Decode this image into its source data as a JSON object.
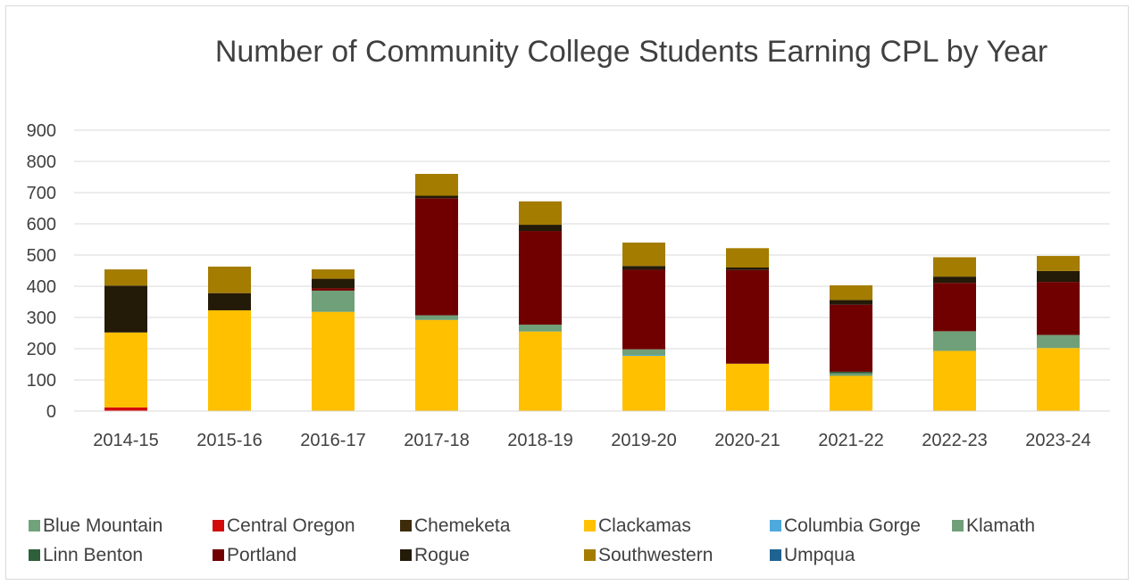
{
  "chart_data": {
    "type": "bar",
    "stacked": true,
    "title": "Number of Community College Students Earning CPL by Year",
    "xlabel": "",
    "ylabel": "",
    "ylim": [
      0,
      900
    ],
    "yticks": [
      0,
      100,
      200,
      300,
      400,
      500,
      600,
      700,
      800,
      900
    ],
    "grid": true,
    "legend_position": "bottom",
    "categories": [
      "2014-15",
      "2015-16",
      "2016-17",
      "2017-18",
      "2018-19",
      "2019-20",
      "2020-21",
      "2021-22",
      "2022-23",
      "2023-24"
    ],
    "series": [
      {
        "name": "Blue Mountain",
        "color": "#70a37a",
        "values": [
          0,
          0,
          0,
          0,
          0,
          0,
          0,
          0,
          0,
          0
        ]
      },
      {
        "name": "Central Oregon",
        "color": "#d20a0a",
        "values": [
          12,
          0,
          0,
          0,
          0,
          0,
          0,
          0,
          0,
          0
        ]
      },
      {
        "name": "Chemeketa",
        "color": "#3d2b0a",
        "values": [
          0,
          0,
          0,
          0,
          0,
          0,
          0,
          0,
          0,
          0
        ]
      },
      {
        "name": "Clackamas",
        "color": "#ffc000",
        "values": [
          240,
          323,
          318,
          292,
          255,
          177,
          152,
          113,
          193,
          202
        ]
      },
      {
        "name": "Columbia Gorge",
        "color": "#4ea9dc",
        "values": [
          0,
          0,
          0,
          0,
          0,
          3,
          0,
          0,
          0,
          0
        ]
      },
      {
        "name": "Klamath",
        "color": "#6fa079",
        "values": [
          0,
          0,
          68,
          15,
          22,
          18,
          0,
          8,
          63,
          42
        ]
      },
      {
        "name": "Linn Benton",
        "color": "#2f5e3a",
        "values": [
          0,
          0,
          0,
          0,
          0,
          0,
          0,
          5,
          0,
          0
        ]
      },
      {
        "name": "Portland",
        "color": "#700000",
        "values": [
          0,
          0,
          8,
          375,
          300,
          255,
          300,
          215,
          155,
          170
        ]
      },
      {
        "name": "Rogue",
        "color": "#241a08",
        "values": [
          150,
          55,
          30,
          8,
          20,
          12,
          8,
          15,
          20,
          35
        ]
      },
      {
        "name": "Southwestern",
        "color": "#a47c00",
        "values": [
          52,
          85,
          30,
          70,
          75,
          75,
          62,
          47,
          62,
          48
        ]
      },
      {
        "name": "Umpqua",
        "color": "#1f6391",
        "values": [
          0,
          0,
          0,
          0,
          0,
          0,
          0,
          0,
          0,
          0
        ]
      }
    ]
  }
}
